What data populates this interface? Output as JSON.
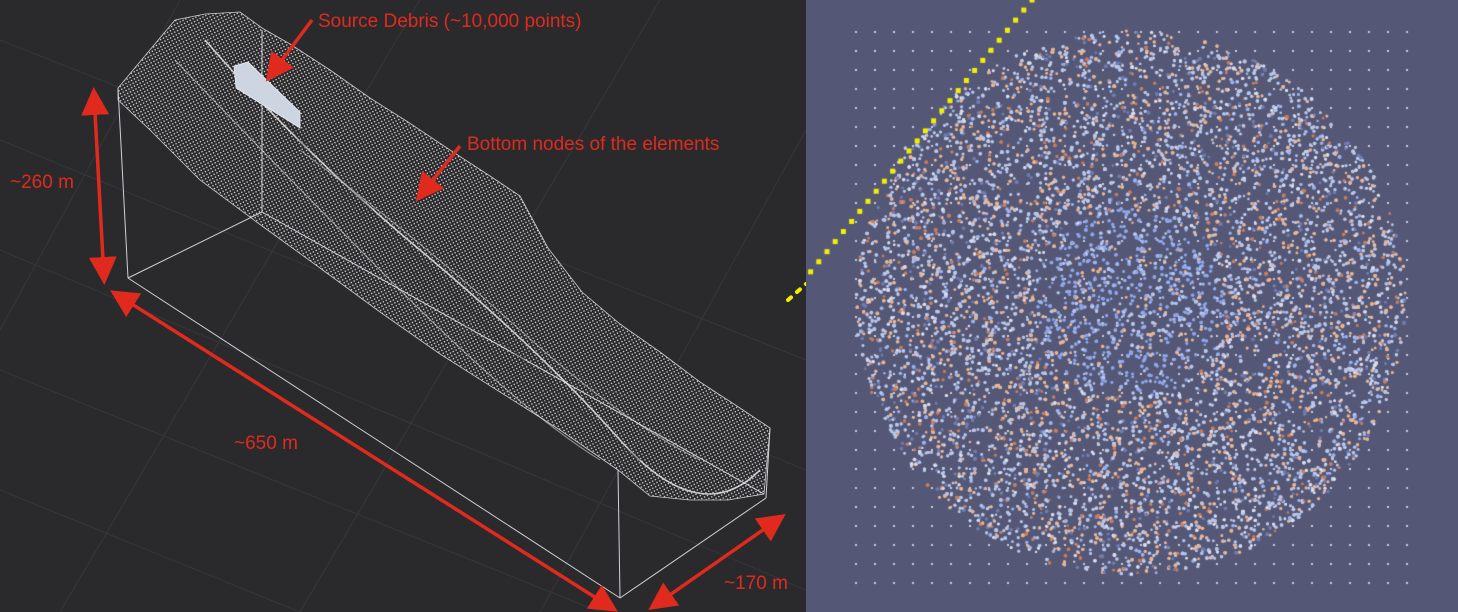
{
  "annotations": {
    "source_debris": "Source Debris (~10,000 points)",
    "bottom_nodes": "Bottom nodes of the elements",
    "height": "~260 m",
    "length": "~650 m",
    "width": "~170 m"
  },
  "colors": {
    "left_background": "#2a2a2c",
    "grid": "#3a3a3e",
    "mesh": "#d8d8dc",
    "annotation": "#e02a1e",
    "right_background": "#545876",
    "grid_dots": "#e6e6ee",
    "dotted_line": "#f2f000",
    "particle_palette": [
      "#b9c7ea",
      "#8fa6ea",
      "#e8b596",
      "#c77d5f",
      "#9bb3f2",
      "#d9dcec",
      "#707bb0"
    ]
  },
  "icons": {
    "arrow": "arrow-icon",
    "double_arrow": "double-arrow-icon"
  }
}
